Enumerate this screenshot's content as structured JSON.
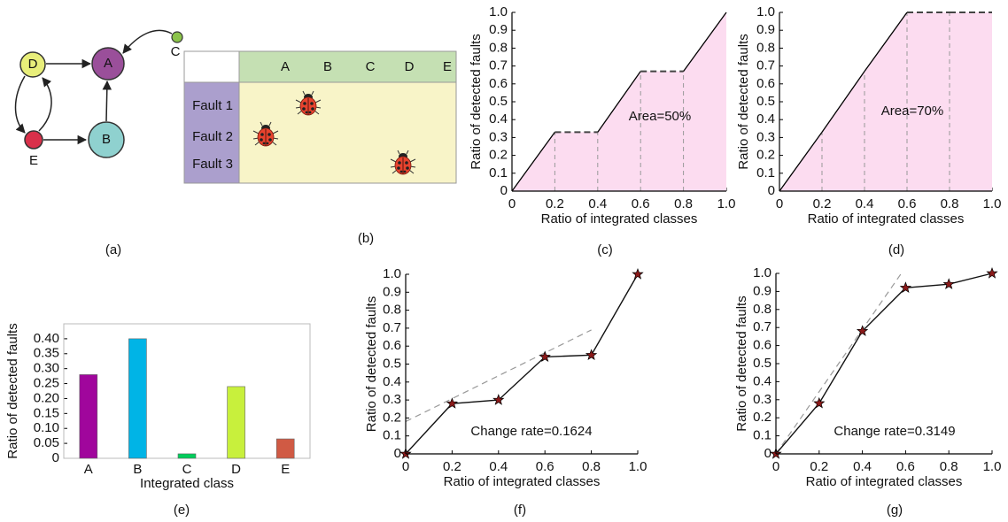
{
  "graph": {
    "caption": "(a)",
    "nodes": [
      {
        "label": "A"
      },
      {
        "label": "B"
      },
      {
        "label": "C"
      },
      {
        "label": "D"
      },
      {
        "label": "E"
      }
    ]
  },
  "table": {
    "caption": "(b)",
    "columns": [
      "A",
      "B",
      "C",
      "D",
      "E"
    ],
    "rows": [
      "Fault 1",
      "Fault 2",
      "Fault 3"
    ]
  },
  "chart_data": [
    {
      "type": "area",
      "caption": "(c)",
      "x_label": "Ratio of integrated classes",
      "y_label": "Ratio of detected faults",
      "x": [
        0,
        0.2,
        0.4,
        0.6,
        0.8,
        1.0
      ],
      "values": [
        0,
        0.33,
        0.33,
        0.67,
        0.67,
        1.0
      ],
      "color": "#fcdcf0",
      "annotation": "Area=50%",
      "xlim": [
        0,
        1
      ],
      "ylim": [
        0,
        1
      ],
      "xticks": [
        0,
        0.2,
        0.4,
        0.6,
        0.8,
        {
          "value": 1,
          "label": "1.0"
        }
      ],
      "yticks": [
        0,
        0.1,
        0.2,
        0.3,
        0.4,
        0.5,
        0.6,
        0.7,
        0.8,
        0.9,
        {
          "value": 1,
          "label": "1.0"
        }
      ]
    },
    {
      "type": "area",
      "caption": "(d)",
      "x_label": "Ratio of integrated classes",
      "y_label": "Ratio of detected faults",
      "x": [
        0,
        0.2,
        0.4,
        0.6,
        0.8,
        1.0
      ],
      "values": [
        0,
        0.33,
        0.67,
        1.0,
        1.0,
        1.0
      ],
      "color": "#fcdcf0",
      "annotation": "Area=70%",
      "xlim": [
        0,
        1
      ],
      "ylim": [
        0,
        1
      ],
      "xticks": [
        0,
        0.2,
        0.4,
        0.6,
        0.8,
        {
          "value": 1,
          "label": "1.0"
        }
      ],
      "yticks": [
        0,
        0.1,
        0.2,
        0.3,
        0.4,
        0.5,
        0.6,
        0.7,
        0.8,
        0.9,
        {
          "value": 1,
          "label": "1.0"
        }
      ]
    },
    {
      "type": "bar",
      "caption": "(e)",
      "x_label": "Integrated class",
      "y_label": "Ratio of detected faults",
      "categories": [
        "A",
        "B",
        "C",
        "D",
        "E"
      ],
      "values": [
        0.28,
        0.4,
        0.015,
        0.24,
        0.065
      ],
      "colors": [
        "#a0069c",
        "#00b4e6",
        "#00cc5a",
        "#c8f03c",
        "#d05a44"
      ],
      "ylim": [
        0,
        0.45
      ],
      "yticks": [
        0,
        0.05,
        {
          "value": 0.1,
          "label": "0.10"
        },
        0.15,
        {
          "value": 0.2,
          "label": "0.20"
        },
        0.25,
        {
          "value": 0.3,
          "label": "0.30"
        },
        0.35,
        {
          "value": 0.4,
          "label": "0.40"
        }
      ]
    },
    {
      "type": "line",
      "caption": "(f)",
      "x_label": "Ratio of integrated classes",
      "y_label": "Ratio of detected faults",
      "x": [
        0,
        0.2,
        0.4,
        0.6,
        0.8,
        1.0
      ],
      "values": [
        0,
        0.28,
        0.3,
        0.54,
        0.55,
        1.0
      ],
      "color": "#8b1a1a",
      "annotation": "Change rate=0.1624",
      "trend": {
        "x": [
          0,
          0.8
        ],
        "values": [
          0.18,
          0.69
        ]
      },
      "xlim": [
        0,
        1
      ],
      "ylim": [
        0,
        1
      ],
      "xticks": [
        0,
        0.2,
        0.4,
        0.6,
        0.8,
        {
          "value": 1,
          "label": "1.0"
        }
      ],
      "yticks": [
        0,
        0.1,
        0.2,
        0.3,
        0.4,
        0.5,
        0.6,
        0.7,
        0.8,
        0.9,
        {
          "value": 1,
          "label": "1.0"
        }
      ]
    },
    {
      "type": "line",
      "caption": "(g)",
      "x_label": "Ratio of integrated classes",
      "y_label": "Ratio of detected faults",
      "x": [
        0,
        0.2,
        0.4,
        0.6,
        0.8,
        1.0
      ],
      "values": [
        0,
        0.28,
        0.68,
        0.92,
        0.94,
        1.0
      ],
      "color": "#8b1a1a",
      "annotation": "Change rate=0.3149",
      "trend": {
        "x": [
          0,
          0.58
        ],
        "values": [
          0,
          1.0
        ]
      },
      "xlim": [
        0,
        1
      ],
      "ylim": [
        0,
        1
      ],
      "xticks": [
        0,
        0.2,
        0.4,
        0.6,
        0.8,
        {
          "value": 1,
          "label": "1.0"
        }
      ],
      "yticks": [
        0,
        0.1,
        0.2,
        0.3,
        0.4,
        0.5,
        0.6,
        0.7,
        0.8,
        0.9,
        {
          "value": 1,
          "label": "1.0"
        }
      ]
    }
  ]
}
